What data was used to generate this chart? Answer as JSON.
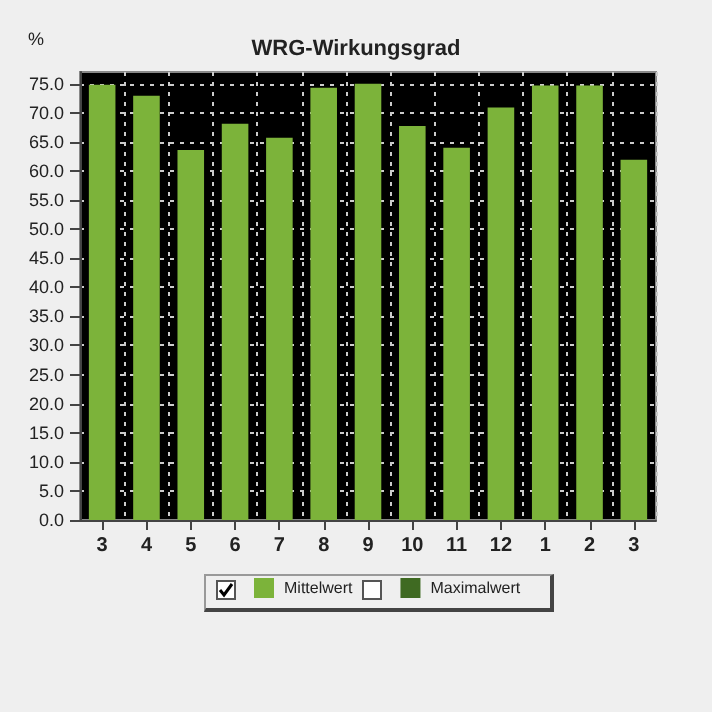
{
  "chart_data": {
    "type": "bar",
    "title": "WRG-Wirkungsgrad",
    "ylabel": "%",
    "categories": [
      "3",
      "4",
      "5",
      "6",
      "7",
      "8",
      "9",
      "10",
      "11",
      "12",
      "1",
      "2",
      "3"
    ],
    "series": [
      {
        "name": "Mittelwert",
        "color": "#7cb33a",
        "values": [
          74.8,
          72.9,
          63.6,
          68.1,
          65.7,
          74.3,
          75.0,
          67.7,
          64.0,
          70.9,
          74.7,
          74.7,
          61.9
        ]
      },
      {
        "name": "Maximalwert",
        "color": "#3f6a22",
        "values": [
          null,
          null,
          null,
          null,
          null,
          null,
          null,
          null,
          null,
          null,
          null,
          null,
          null
        ]
      }
    ],
    "ylim": [
      0,
      77
    ],
    "yticks": [
      {
        "value": 0,
        "label": "0.0"
      },
      {
        "value": 5,
        "label": "5.0"
      },
      {
        "value": 10,
        "label": "10.0"
      },
      {
        "value": 15,
        "label": "15.0"
      },
      {
        "value": 20,
        "label": "20.0"
      },
      {
        "value": 25,
        "label": "25.0"
      },
      {
        "value": 30,
        "label": "30.0"
      },
      {
        "value": 35,
        "label": "35.0"
      },
      {
        "value": 40,
        "label": "40.0"
      },
      {
        "value": 45,
        "label": "45.0"
      },
      {
        "value": 50,
        "label": "50.0"
      },
      {
        "value": 55,
        "label": "55.0"
      },
      {
        "value": 60,
        "label": "60.0"
      },
      {
        "value": 65,
        "label": "65.0"
      },
      {
        "value": 70,
        "label": "70.0"
      },
      {
        "value": 75,
        "label": "75.0"
      }
    ],
    "grid": true,
    "legend": "bottom"
  }
}
